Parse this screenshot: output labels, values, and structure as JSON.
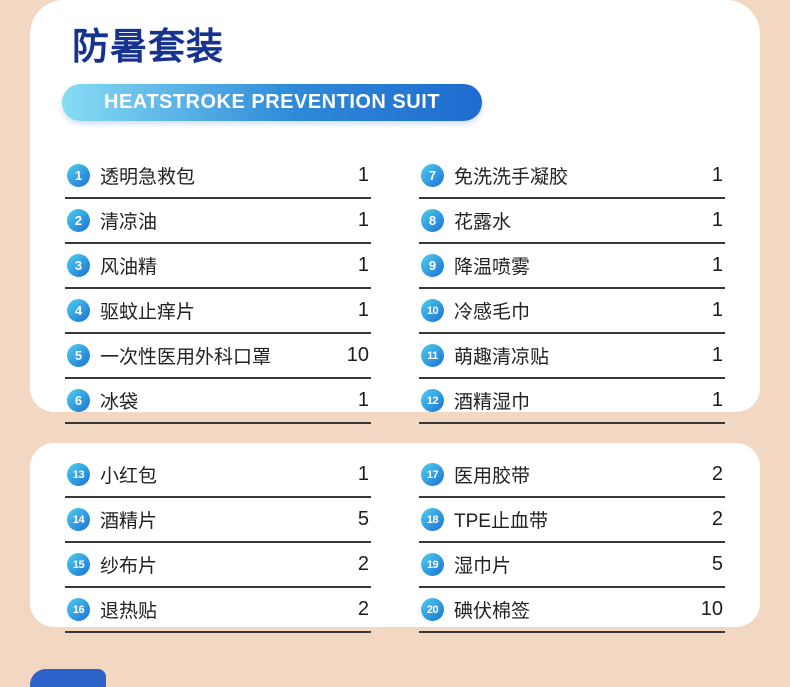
{
  "title": "防暑套装",
  "banner": "HEATSTROKE PREVENTION SUIT",
  "colors": {
    "bg": "#f2d7c3",
    "card": "#ffffff",
    "title": "#16338f",
    "banner_from": "#87dcf5",
    "banner_mid": "#2f8ad8",
    "banner_to": "#1f6bcf",
    "circle_from": "#4fd0ef",
    "circle_to": "#1a70d2",
    "line": "#383838",
    "text": "#222222",
    "accent": "#2d63c9"
  },
  "sections": [
    {
      "columns": [
        {
          "items": [
            {
              "num": "1",
              "label": "透明急救包",
              "qty": "1"
            },
            {
              "num": "2",
              "label": "清凉油",
              "qty": "1"
            },
            {
              "num": "3",
              "label": "风油精",
              "qty": "1"
            },
            {
              "num": "4",
              "label": "驱蚊止痒片",
              "qty": "1"
            },
            {
              "num": "5",
              "label": "一次性医用外科口罩",
              "qty": "10"
            },
            {
              "num": "6",
              "label": "冰袋",
              "qty": "1"
            }
          ]
        },
        {
          "items": [
            {
              "num": "7",
              "label": "免洗洗手凝胶",
              "qty": "1"
            },
            {
              "num": "8",
              "label": "花露水",
              "qty": "1"
            },
            {
              "num": "9",
              "label": "降温喷雾",
              "qty": "1"
            },
            {
              "num": "10",
              "label": "冷感毛巾",
              "qty": "1"
            },
            {
              "num": "11",
              "label": "萌趣清凉贴",
              "qty": "1"
            },
            {
              "num": "12",
              "label": "酒精湿巾",
              "qty": "1"
            }
          ]
        }
      ]
    },
    {
      "columns": [
        {
          "items": [
            {
              "num": "13",
              "label": "小红包",
              "qty": "1"
            },
            {
              "num": "14",
              "label": "酒精片",
              "qty": "5"
            },
            {
              "num": "15",
              "label": "纱布片",
              "qty": "2"
            },
            {
              "num": "16",
              "label": "退热贴",
              "qty": "2"
            }
          ]
        },
        {
          "items": [
            {
              "num": "17",
              "label": "医用胶带",
              "qty": "2"
            },
            {
              "num": "18",
              "label": "TPE止血带",
              "qty": "2"
            },
            {
              "num": "19",
              "label": "湿巾片",
              "qty": "5"
            },
            {
              "num": "20",
              "label": "碘伏棉签",
              "qty": "10"
            }
          ]
        }
      ]
    }
  ]
}
